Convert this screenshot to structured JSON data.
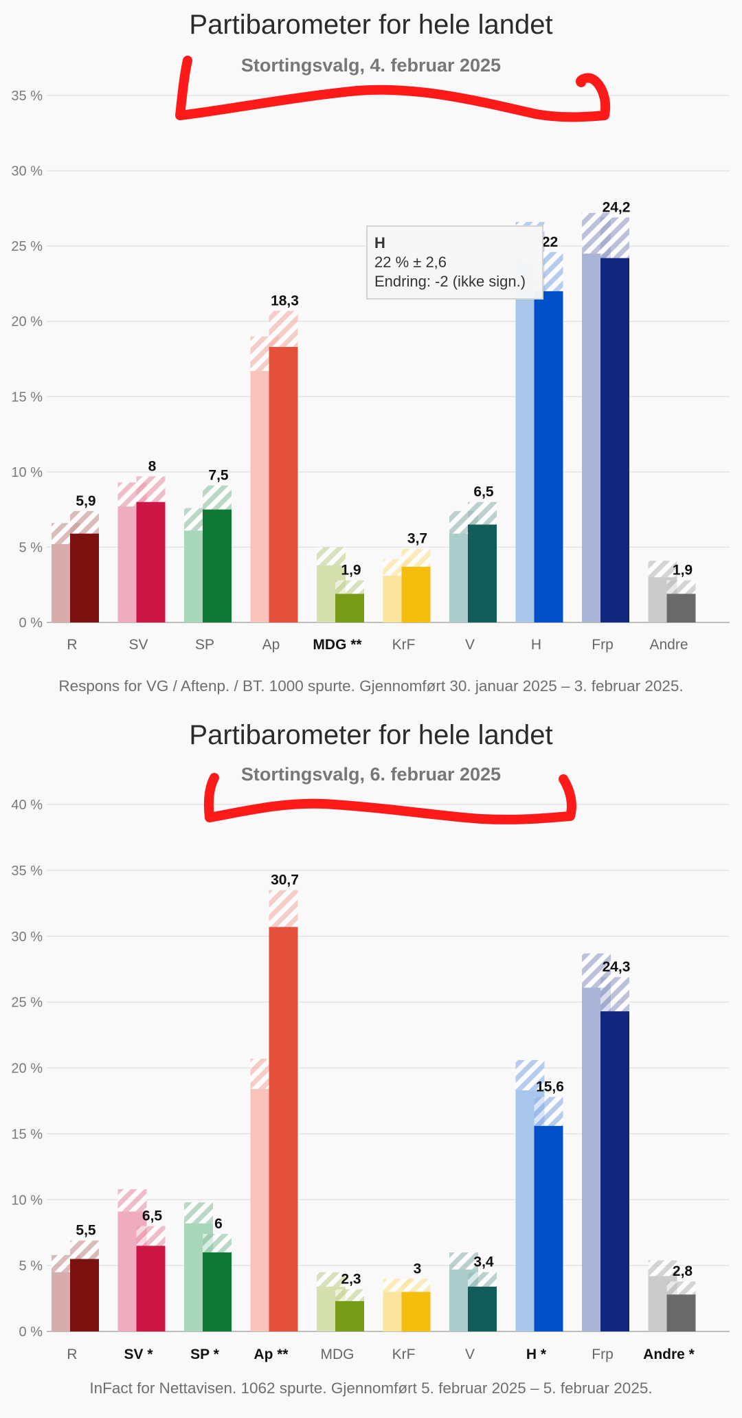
{
  "chart_data": [
    {
      "type": "bar",
      "title": "Partibarometer for hele landet",
      "subtitle": "Stortingsvalg, 4. februar 2025",
      "source": "Respons for VG / Aftenp. / BT. 1000 spurte. Gjennomført 30. januar 2025 – 3. februar 2025.",
      "ylim": [
        0,
        35
      ],
      "yticks": [
        0,
        5,
        10,
        15,
        20,
        25,
        30,
        35
      ],
      "ytick_labels": [
        "0 %",
        "5 %",
        "10 %",
        "15 %",
        "20 %",
        "25 %",
        "30 %",
        "35 %"
      ],
      "categories": [
        "R",
        "SV",
        "SP",
        "Ap",
        "MDG **",
        "KrF",
        "V",
        "H",
        "Frp",
        "Andre"
      ],
      "bold_categories": [
        "MDG **"
      ],
      "series": [
        {
          "name": "previous",
          "values": [
            5.2,
            7.7,
            6.1,
            16.7,
            3.8,
            3.1,
            5.9,
            24.0,
            24.5,
            3.0
          ],
          "margins": [
            1.4,
            1.6,
            1.5,
            2.3,
            1.2,
            1.1,
            1.5,
            2.6,
            2.7,
            1.1
          ]
        },
        {
          "name": "current",
          "values": [
            5.9,
            8,
            7.5,
            18.3,
            1.9,
            3.7,
            6.5,
            22,
            24.2,
            1.9
          ],
          "margins": [
            1.5,
            1.7,
            1.6,
            2.4,
            0.9,
            1.2,
            1.5,
            2.6,
            2.7,
            0.9
          ]
        }
      ],
      "value_labels": [
        "5,9",
        "8",
        "7,5",
        "18,3",
        "1,9",
        "3,7",
        "6,5",
        "22",
        "24,2",
        "1,9"
      ],
      "colors_current": [
        "#7c1210",
        "#cc1645",
        "#107935",
        "#e5503a",
        "#779b17",
        "#f5bd0e",
        "#125c5a",
        "#0050c8",
        "#13267d",
        "#6a6a6a"
      ],
      "colors_previous": [
        "#d8acac",
        "#efacbf",
        "#a8d6bb",
        "#f8c3bb",
        "#d6dfae",
        "#fde49c",
        "#aacdcb",
        "#a8c6ec",
        "#aab4d6",
        "#cbcbcb"
      ],
      "tooltip": {
        "title": "H",
        "line1": "22 % ± 2,6",
        "line2": "Endring: -2 (ikke sign.)"
      }
    },
    {
      "type": "bar",
      "title": "Partibarometer for hele landet",
      "subtitle": "Stortingsvalg, 6. februar 2025",
      "source": "InFact for Nettavisen. 1062 spurte. Gjennomført 5. februar 2025 – 5. februar 2025.",
      "ylim": [
        0,
        40
      ],
      "yticks": [
        0,
        5,
        10,
        15,
        20,
        25,
        30,
        35,
        40
      ],
      "ytick_labels": [
        "0 %",
        "5 %",
        "10 %",
        "15 %",
        "20 %",
        "25 %",
        "30 %",
        "35 %",
        "40 %"
      ],
      "categories": [
        "R",
        "SV *",
        "SP *",
        "Ap **",
        "MDG",
        "KrF",
        "V",
        "H *",
        "Frp",
        "Andre *"
      ],
      "bold_categories": [
        "SV *",
        "SP *",
        "Ap **",
        "H *",
        "Andre *"
      ],
      "series": [
        {
          "name": "previous",
          "values": [
            4.5,
            9.1,
            8.2,
            18.4,
            3.4,
            3.0,
            4.7,
            18.3,
            26.1,
            4.2
          ],
          "margins": [
            1.3,
            1.7,
            1.6,
            2.3,
            1.1,
            1.0,
            1.3,
            2.3,
            2.6,
            1.2
          ]
        },
        {
          "name": "current",
          "values": [
            5.5,
            6.5,
            6,
            30.7,
            2.3,
            3,
            3.4,
            15.6,
            24.3,
            2.8
          ],
          "margins": [
            1.4,
            1.5,
            1.4,
            2.8,
            0.9,
            1.0,
            1.1,
            2.2,
            2.6,
            1.0
          ]
        }
      ],
      "value_labels": [
        "5,5",
        "6,5",
        "6",
        "30,7",
        "2,3",
        "3",
        "3,4",
        "15,6",
        "24,3",
        "2,8"
      ],
      "colors_current": [
        "#7c1210",
        "#cc1645",
        "#107935",
        "#e5503a",
        "#779b17",
        "#f5bd0e",
        "#125c5a",
        "#0050c8",
        "#13267d",
        "#6a6a6a"
      ],
      "colors_previous": [
        "#d8acac",
        "#efacbf",
        "#a8d6bb",
        "#f8c3bb",
        "#d6dfae",
        "#fde49c",
        "#aacdcb",
        "#a8c6ec",
        "#aab4d6",
        "#cbcbcb"
      ]
    }
  ],
  "annotation_color": "#ff1a1a"
}
